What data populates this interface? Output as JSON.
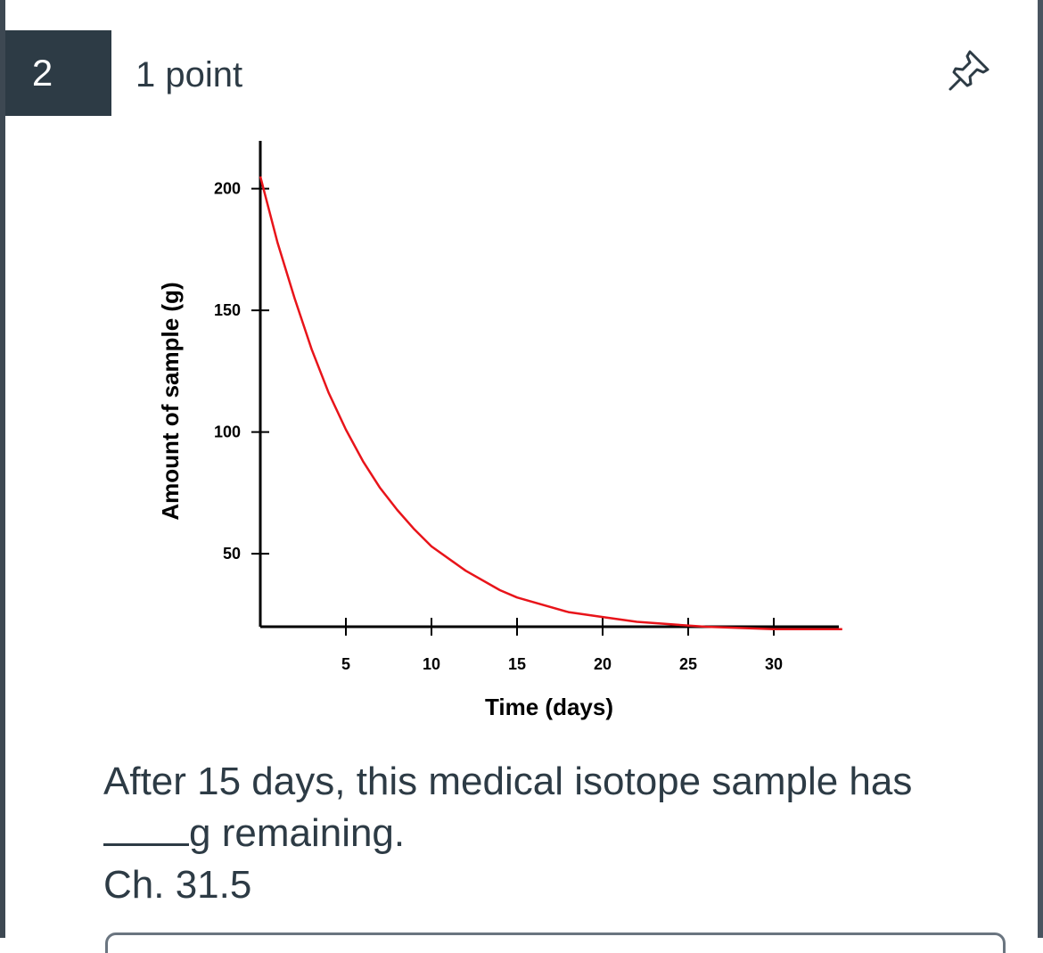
{
  "question": {
    "number": "2",
    "points": "1 point",
    "text_line1": "After 15 days, this medical isotope sample has",
    "text_line2": "g remaining.",
    "text_line3": "Ch. 31.5"
  },
  "chart_data": {
    "type": "line",
    "xlabel": "Time (days)",
    "ylabel": "Amount of sample (g)",
    "x_ticks": [
      5,
      10,
      15,
      20,
      25,
      30
    ],
    "y_ticks": [
      50,
      100,
      150,
      200
    ],
    "x_range": [
      0,
      34
    ],
    "y_range": [
      20,
      200
    ],
    "series": [
      {
        "color": "#e8141a",
        "x": [
          0,
          1,
          2,
          3,
          4,
          5,
          6,
          7,
          8,
          9,
          10,
          12,
          14,
          15,
          16,
          18,
          20,
          22,
          24,
          26,
          28,
          30,
          32,
          34
        ],
        "y": [
          205,
          178,
          155,
          134,
          116,
          101,
          88,
          77,
          68,
          60,
          53,
          43,
          35,
          32,
          30,
          26,
          24,
          22,
          21,
          20,
          19.5,
          19,
          19,
          19
        ]
      }
    ]
  }
}
